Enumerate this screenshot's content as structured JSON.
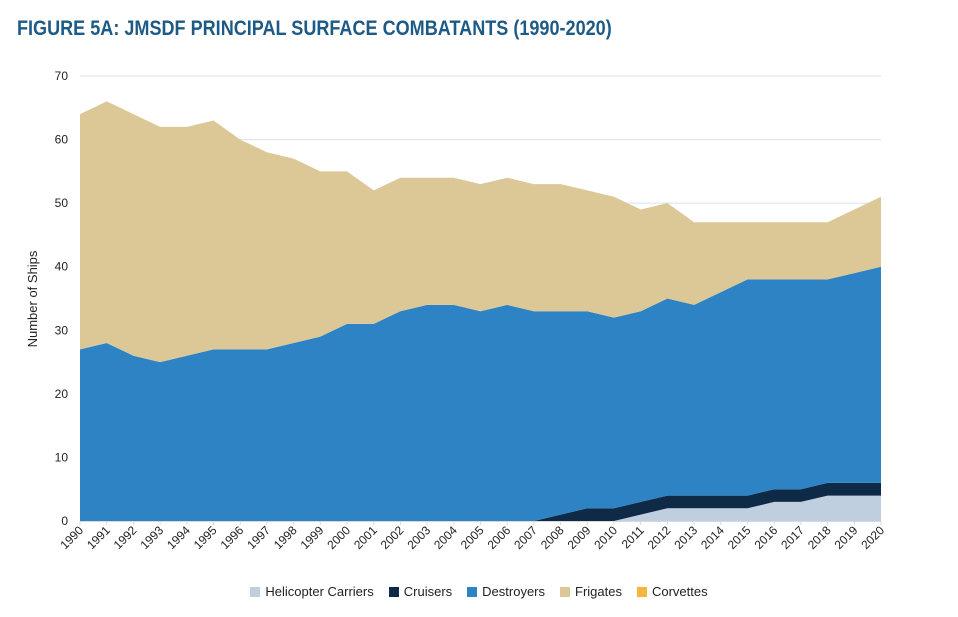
{
  "chart_data": {
    "type": "area",
    "stacked": true,
    "title": "FIGURE 5A: JMSDF PRINCIPAL SURFACE COMBATANTS (1990-2020)",
    "xlabel": "",
    "ylabel": "Number of Ships",
    "ylim": [
      0,
      70
    ],
    "yticks": [
      0,
      10,
      20,
      30,
      40,
      50,
      60,
      70
    ],
    "grid": true,
    "legend_position": "bottom",
    "categories": [
      "1990",
      "1991",
      "1992",
      "1993",
      "1994",
      "1995",
      "1996",
      "1997",
      "1998",
      "1999",
      "2000",
      "2001",
      "2002",
      "2003",
      "2004",
      "2005",
      "2006",
      "2007",
      "2008",
      "2009",
      "2010",
      "2011",
      "2012",
      "2013",
      "2014",
      "2015",
      "2016",
      "2017",
      "2018",
      "2019",
      "2020"
    ],
    "series": [
      {
        "name": "Helicopter Carriers",
        "color": "#c0cfdf",
        "values": [
          0,
          0,
          0,
          0,
          0,
          0,
          0,
          0,
          0,
          0,
          0,
          0,
          0,
          0,
          0,
          0,
          0,
          0,
          0,
          0,
          0,
          1,
          2,
          2,
          2,
          2,
          3,
          3,
          4,
          4,
          4
        ]
      },
      {
        "name": "Cruisers",
        "color": "#0f2a47",
        "values": [
          0,
          0,
          0,
          0,
          0,
          0,
          0,
          0,
          0,
          0,
          0,
          0,
          0,
          0,
          0,
          0,
          0,
          0,
          1,
          2,
          2,
          2,
          2,
          2,
          2,
          2,
          2,
          2,
          2,
          2,
          2
        ]
      },
      {
        "name": "Destroyers",
        "color": "#2e83c5",
        "values": [
          27,
          28,
          26,
          25,
          26,
          27,
          27,
          27,
          28,
          29,
          31,
          31,
          33,
          34,
          34,
          33,
          34,
          33,
          32,
          31,
          30,
          30,
          31,
          30,
          32,
          34,
          33,
          33,
          32,
          33,
          34
        ]
      },
      {
        "name": "Frigates",
        "color": "#dcc896",
        "values": [
          37,
          38,
          38,
          37,
          36,
          36,
          33,
          31,
          29,
          26,
          24,
          21,
          21,
          20,
          20,
          20,
          20,
          20,
          20,
          19,
          19,
          16,
          15,
          13,
          11,
          9,
          9,
          9,
          9,
          10,
          11
        ]
      },
      {
        "name": "Corvettes",
        "color": "#f3b63f",
        "values": [
          0,
          0,
          0,
          0,
          0,
          0,
          0,
          0,
          0,
          0,
          0,
          0,
          0,
          0,
          0,
          0,
          0,
          0,
          0,
          0,
          0,
          0,
          0,
          0,
          0,
          0,
          0,
          0,
          0,
          0,
          0
        ]
      }
    ]
  },
  "colors": {
    "title": "#1d5a86",
    "grid": "#d6e2ec",
    "tick_text": "#222222"
  }
}
